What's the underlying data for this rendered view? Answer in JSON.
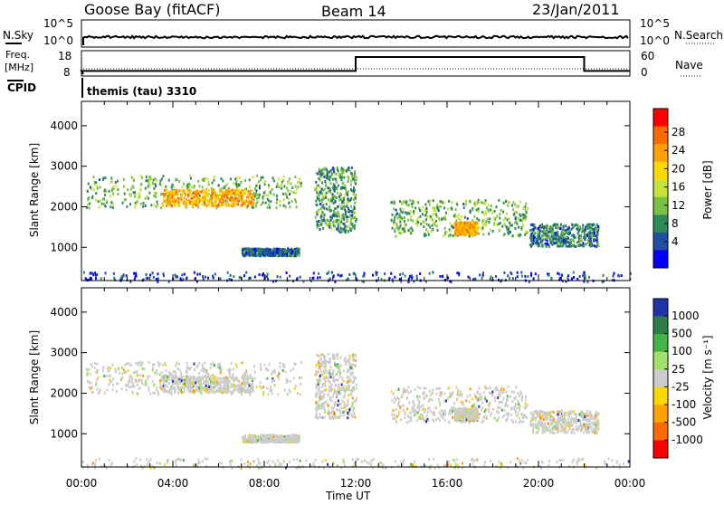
{
  "header": {
    "station": "Goose Bay (fitACF)",
    "beam": "Beam 14",
    "date": "23/Jan/2011"
  },
  "top_panels": {
    "nsky_label": "N.Sky",
    "nsearch_label": "N.Search",
    "noise_ticks": [
      "10^5",
      "10^0"
    ],
    "noise_ticks_right": [
      "10^5",
      "10^0"
    ],
    "freq_label_line1": "Freq.",
    "freq_label_line2": "[MHz]",
    "freq_ticks": [
      "18",
      "8"
    ],
    "nave_label": "Nave",
    "nave_ticks": [
      "60",
      "0"
    ],
    "cpid_label": "CPID",
    "cpid_text": "themis (tau) 3310"
  },
  "axes": {
    "x_ticks": [
      "00:00",
      "04:00",
      "08:00",
      "12:00",
      "16:00",
      "20:00",
      "00:00"
    ],
    "xlabel": "Time UT",
    "ylabel": "Slant Range [km]",
    "y_ticks": [
      "4000",
      "3000",
      "2000",
      "1000"
    ]
  },
  "power_colorbar": {
    "label": "Power [dB]",
    "ticks": [
      "28",
      "24",
      "20",
      "16",
      "12",
      "8",
      "4"
    ],
    "colors": [
      "#ff0000",
      "#ff6a00",
      "#ff9f00",
      "#ffd700",
      "#c8e23a",
      "#7ac143",
      "#2e8b57",
      "#1e4fa0",
      "#0000ff"
    ]
  },
  "velocity_colorbar": {
    "label": "Velocity [m s⁻¹]",
    "ticks": [
      "1000",
      "500",
      "100",
      "25",
      "-25",
      "-100",
      "-500",
      "-1000"
    ],
    "colors": [
      "#2233aa",
      "#2e7d4a",
      "#44b444",
      "#9ee06a",
      "#cccccc",
      "#ffd700",
      "#ff9f00",
      "#ff6a00",
      "#ff0000"
    ]
  },
  "chart_data": {
    "type": "heatmap",
    "xlabel": "Time UT",
    "ylabel": "Slant Range [km]",
    "x_range_hours": [
      0,
      24
    ],
    "y_range_km": [
      180,
      4600
    ],
    "frequency_mhz": [
      {
        "from_h": 0,
        "to_h": 12,
        "value": 10
      },
      {
        "from_h": 12,
        "to_h": 22,
        "value": 15.5
      },
      {
        "from_h": 22,
        "to_h": 24,
        "value": 10
      }
    ],
    "scatter_regions": [
      {
        "t0": 0.2,
        "t1": 9.6,
        "r0": 2000,
        "r1": 2800,
        "power_db": 14
      },
      {
        "t0": 3.5,
        "t1": 7.5,
        "r0": 2050,
        "r1": 2450,
        "power_db": 24
      },
      {
        "t0": 10.2,
        "t1": 12.0,
        "r0": 1400,
        "r1": 3000,
        "power_db": 12
      },
      {
        "t0": 7.0,
        "t1": 9.5,
        "r0": 820,
        "r1": 1000,
        "power_db": 8
      },
      {
        "t0": 13.5,
        "t1": 19.5,
        "r0": 1300,
        "r1": 2200,
        "power_db": 14
      },
      {
        "t0": 16.3,
        "t1": 17.3,
        "r0": 1350,
        "r1": 1650,
        "power_db": 24
      },
      {
        "t0": 19.6,
        "t1": 22.6,
        "r0": 1050,
        "r1": 1600,
        "power_db": 10
      },
      {
        "t0": 0.0,
        "t1": 24.0,
        "r0": 180,
        "r1": 420,
        "power_db": 6
      }
    ]
  }
}
